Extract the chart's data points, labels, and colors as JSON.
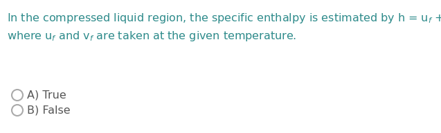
{
  "bg_color": "#ffffff",
  "text_color_question": "#2e8b8b",
  "text_color_options": "#555555",
  "line1": "In the compressed liquid region, the specific enthalpy is estimated by h = u$_f$ + Pv$_{f,}$",
  "line2": "where u$_f$ and v$_f$ are taken at the given temperature.",
  "options": [
    "A) True",
    "B) False"
  ],
  "font_size": 11.5,
  "option_font_size": 11.5,
  "circle_color": "#aaaaaa",
  "figsize": [
    6.37,
    1.93
  ],
  "dpi": 100
}
